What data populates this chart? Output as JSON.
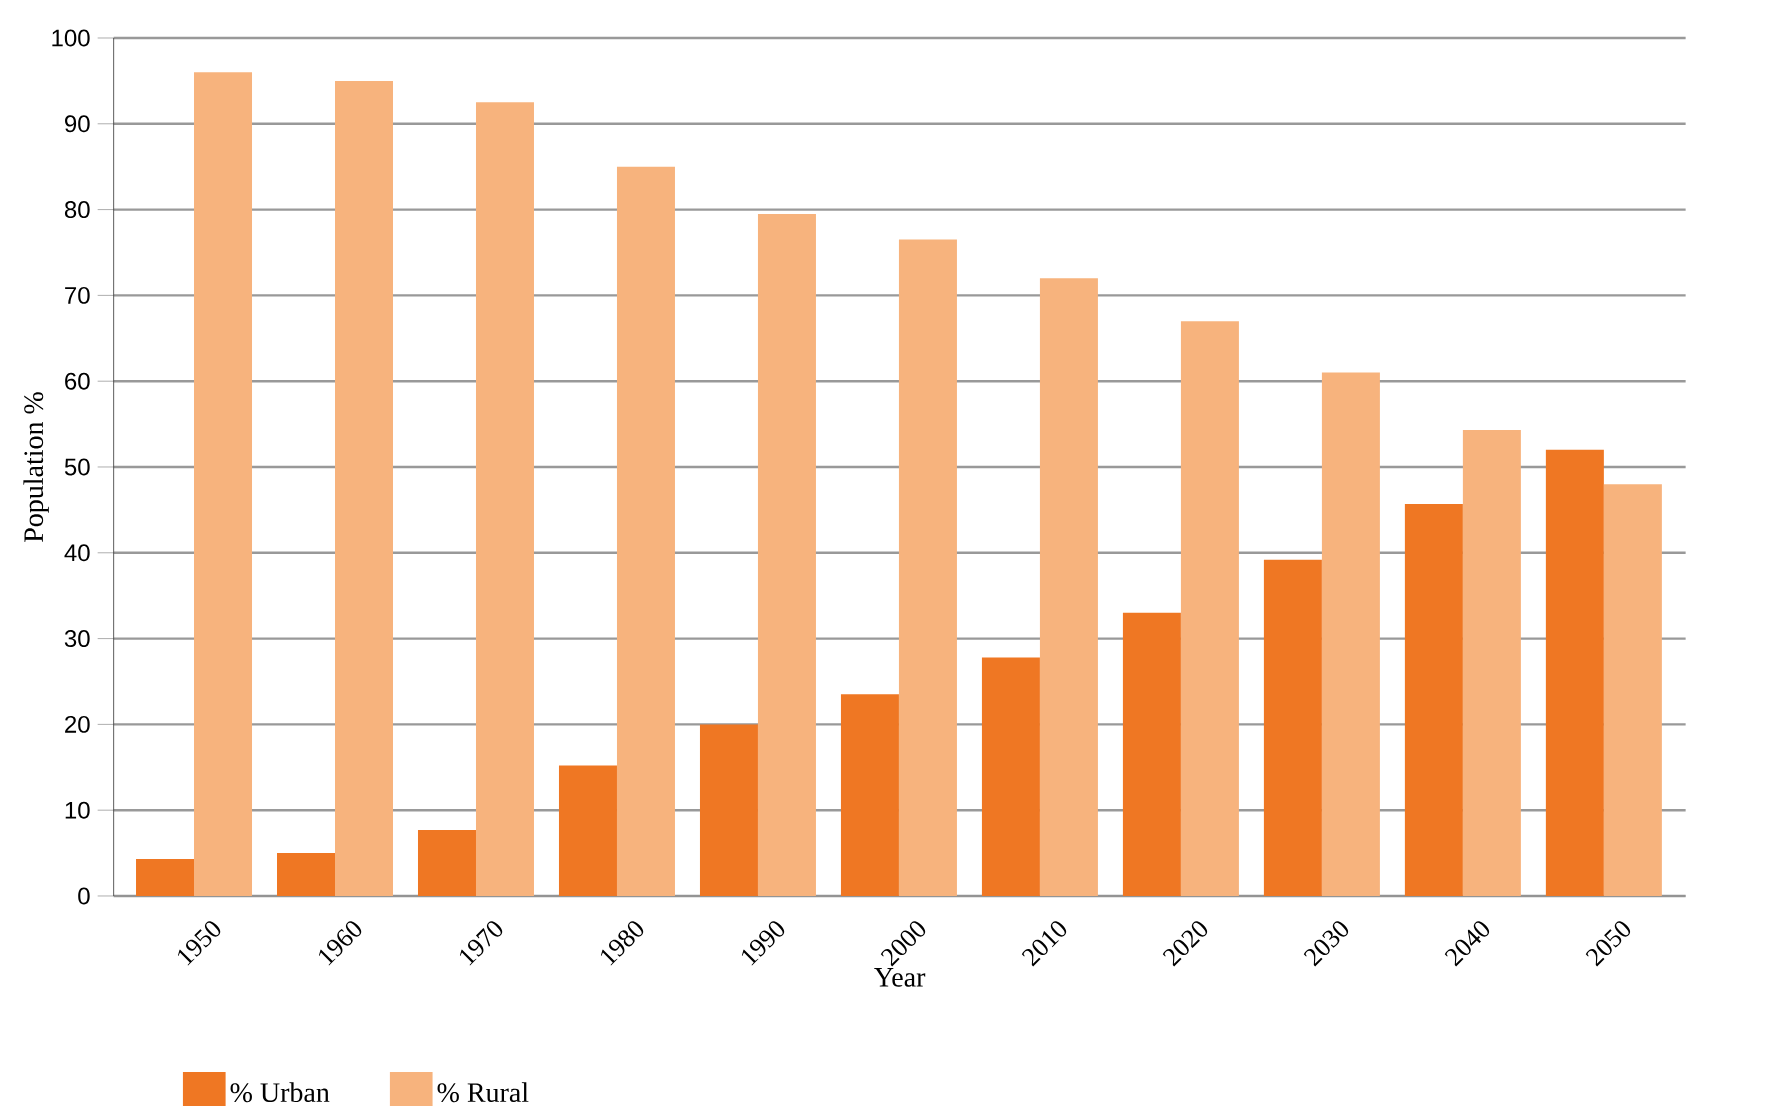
{
  "chart_data": {
    "type": "bar",
    "xlabel": "Year",
    "ylabel": "Population %",
    "categories": [
      "1950",
      "1960",
      "1970",
      "1980",
      "1990",
      "2000",
      "2010",
      "2020",
      "2030",
      "2040",
      "2050"
    ],
    "series": [
      {
        "name": "% Urban",
        "color": "#ef7723",
        "values": [
          4.3,
          5,
          7.7,
          15.2,
          20,
          23.5,
          27.8,
          33,
          39.2,
          45.7,
          52
        ]
      },
      {
        "name": "% Rural",
        "color": "#f7b37d",
        "values": [
          96,
          95,
          92.5,
          85,
          79.5,
          76.5,
          72,
          67,
          61,
          54.3,
          48
        ]
      }
    ],
    "ylim": [
      0,
      100
    ],
    "yticks": [
      0,
      10,
      20,
      30,
      40,
      50,
      60,
      70,
      80,
      90,
      100
    ],
    "grid": "y",
    "legend": "bottom left"
  }
}
